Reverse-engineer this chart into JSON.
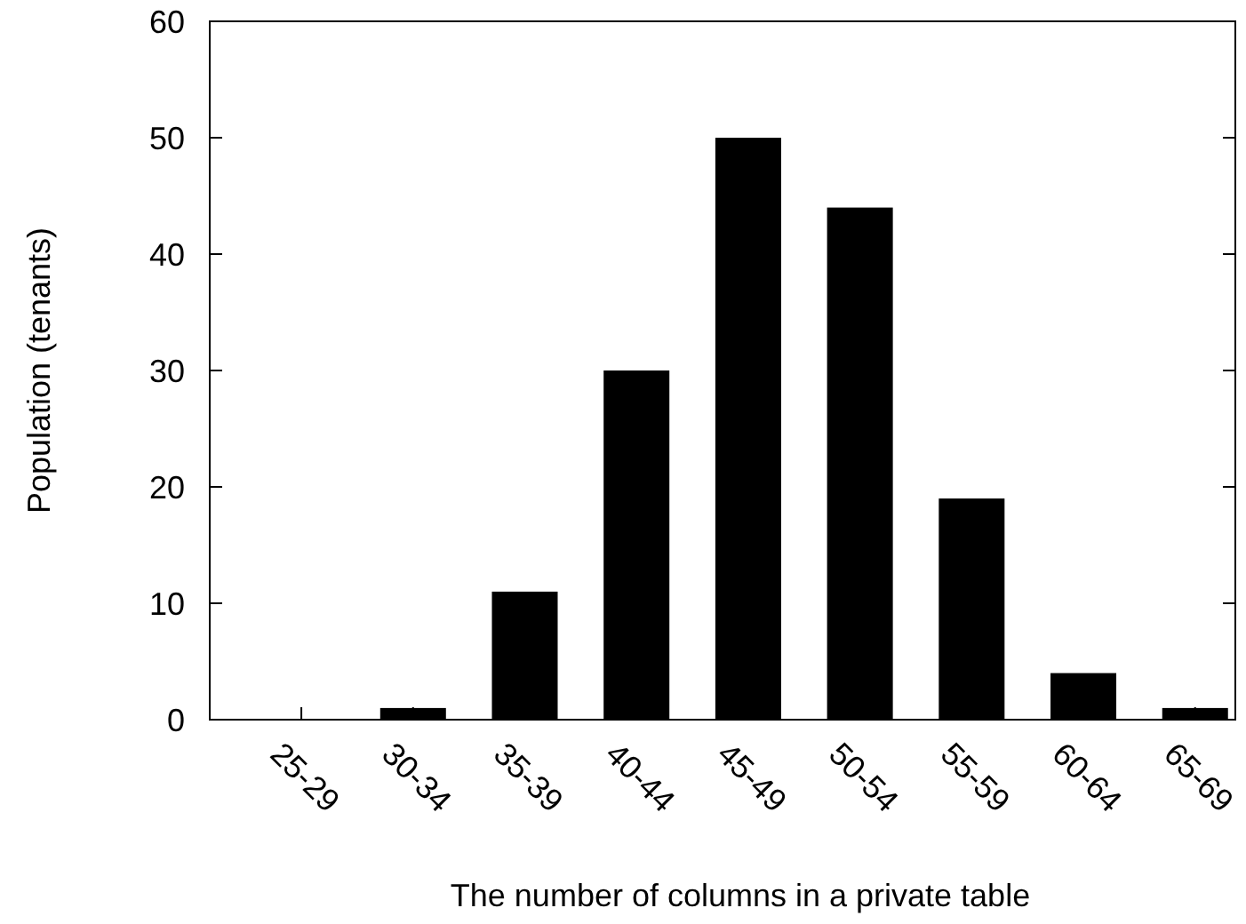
{
  "chart_data": {
    "type": "bar",
    "xlabel": "The number of columns in a private table",
    "ylabel": "Population (tenants)",
    "categories": [
      "25-29",
      "30-34",
      "35-39",
      "40-44",
      "45-49",
      "50-54",
      "55-59",
      "60-64",
      "65-69"
    ],
    "values": [
      0,
      1,
      11,
      30,
      50,
      44,
      19,
      4,
      1
    ],
    "color": "#000000",
    "ylim": [
      0,
      60
    ],
    "yticks": [
      0,
      10,
      20,
      30,
      40,
      50,
      60
    ],
    "grid": false
  }
}
